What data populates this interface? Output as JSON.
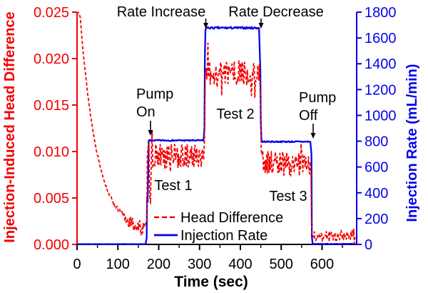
{
  "figure": {
    "background": "#ffffff",
    "accent_red": "#f40000",
    "accent_blue": "#0505e8",
    "text_black": "#000000"
  },
  "chart_data": {
    "type": "line",
    "title": "",
    "xlabel": "Time (sec)",
    "ylabel_left": "Injection-Induced Head Difference",
    "ylabel_right": "Injection Rate (mL/min)",
    "grid": false,
    "legend_position": "inside-bottom-center",
    "x_axis": {
      "min": 0,
      "max": 697,
      "major_ticks": [
        0,
        100,
        200,
        300,
        400,
        500,
        600
      ],
      "tick_labels": [
        "0",
        "100",
        "200",
        "300",
        "400",
        "500",
        "600"
      ],
      "minor_step": 50,
      "color": "#000000"
    },
    "left_axis": {
      "min": 0,
      "max": 0.025,
      "tick_labels": [
        "0.000",
        "0.005",
        "0.010",
        "0.015",
        "0.020",
        "0.025"
      ],
      "color": "#f40000"
    },
    "right_axis": {
      "min": 0,
      "max": 1800,
      "tick_labels": [
        "0",
        "200",
        "400",
        "600",
        "800",
        "1000",
        "1200",
        "1400",
        "1600",
        "1800"
      ],
      "color": "#0505e8"
    },
    "series": [
      {
        "name": "Head Difference",
        "axis": "left",
        "color": "#f40000",
        "style": "dashed",
        "seed": 13,
        "step": 1.4,
        "segments": [
          {
            "type": "decay",
            "t": [
              8,
              169
            ],
            "start": 0.0233,
            "tau": 42,
            "offset": 0.0011,
            "noise_low": 0.00085,
            "lead_in": [
              [
                0.5,
                0.0248
              ],
              [
                3,
                0.025
              ],
              [
                6,
                0.0247
              ]
            ]
          },
          {
            "type": "band",
            "t": [
              184,
              311
            ],
            "level": 0.0095,
            "noise": 0.0013,
            "spiky": true,
            "lead_in": [
              [
                171,
                0.0026
              ],
              [
                172,
                0.0095
              ],
              [
                174,
                0.0105
              ],
              [
                176,
                0.0109
              ],
              [
                178,
                0.0052
              ],
              [
                180,
                0.0044
              ],
              [
                182,
                0.0096
              ]
            ]
          },
          {
            "type": "band",
            "t": [
              315,
              448
            ],
            "level": 0.0184,
            "noise": 0.0013,
            "spiky": true,
            "lead_in": [
              [
                312,
                0.0112
              ],
              [
                313,
                0.015
              ],
              [
                314,
                0.0185
              ]
            ]
          },
          {
            "type": "band",
            "t": [
              452,
              572
            ],
            "level": 0.0089,
            "noise": 0.0013,
            "drift": -0.0005,
            "spiky": true,
            "lead_in": [
              [
                450,
                0.0148
              ],
              [
                451,
                0.0102
              ]
            ]
          },
          {
            "type": "band",
            "t": [
              577,
              681
            ],
            "level": 0.0008,
            "noise": 0.00055,
            "drift": 0.0003,
            "min": 0.0001,
            "spiky": true,
            "lead_in": [
              [
                573,
                0.0078
              ],
              [
                574,
                0.003
              ],
              [
                575,
                0.001
              ]
            ]
          }
        ]
      },
      {
        "name": "Injection Rate",
        "axis": "right",
        "color": "#0505e8",
        "style": "solid",
        "seed": 7,
        "step": 1.6,
        "segments": [
          {
            "type": "band",
            "t": [
              0,
              169
            ],
            "level": 2,
            "noise": 1,
            "min": 0
          },
          {
            "type": "band",
            "t": [
              177,
              310
            ],
            "level": 806,
            "noise": 5,
            "lead_in": [
              [
                170.5,
                50
              ],
              [
                171.5,
                370
              ],
              [
                173,
                330
              ],
              [
                175.5,
                805
              ]
            ]
          },
          {
            "type": "band",
            "t": [
              316,
              447
            ],
            "level": 1678,
            "noise": 8,
            "lead_in": [
              [
                312,
                900
              ],
              [
                313,
                1450
              ],
              [
                314.5,
                1660
              ]
            ]
          },
          {
            "type": "band",
            "t": [
              453,
              572
            ],
            "level": 796,
            "noise": 5,
            "lead_in": [
              [
                449,
                1350
              ],
              [
                450,
                950
              ],
              [
                451.5,
                812
              ]
            ]
          },
          {
            "type": "band",
            "t": [
              577,
              681
            ],
            "level": 3,
            "noise": 2,
            "min": 0,
            "lead_in": [
              [
                574,
                700
              ],
              [
                575,
                60
              ]
            ]
          }
        ]
      }
    ],
    "annotations": [
      {
        "id": "rate-increase",
        "text": "Rate Increase",
        "arrow_at_sec": 314
      },
      {
        "id": "rate-decrease",
        "text": "Rate Decrease",
        "arrow_at_sec": 450
      },
      {
        "id": "pump-on",
        "lines": [
          "Pump",
          "On"
        ],
        "arrow_at_sec": 180
      },
      {
        "id": "pump-off",
        "lines": [
          "Pump",
          "Off"
        ],
        "arrow_at_sec": 578
      },
      {
        "id": "test-1",
        "text": "Test 1"
      },
      {
        "id": "test-2",
        "text": "Test 2"
      },
      {
        "id": "test-3",
        "text": "Test 3"
      }
    ]
  }
}
